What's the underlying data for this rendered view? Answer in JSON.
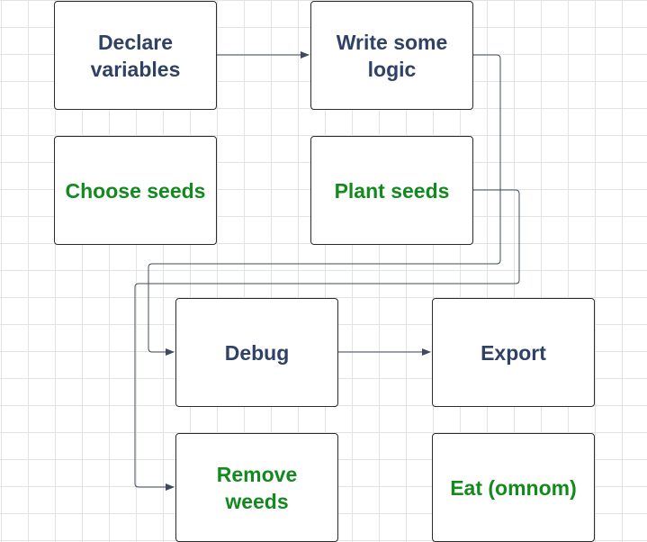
{
  "diagram": {
    "nodes": [
      {
        "id": "declare-variables",
        "label": "Declare variables",
        "kind": "code"
      },
      {
        "id": "write-some-logic",
        "label": "Write some logic",
        "kind": "code"
      },
      {
        "id": "choose-seeds",
        "label": "Choose seeds",
        "kind": "garden"
      },
      {
        "id": "plant-seeds",
        "label": "Plant seeds",
        "kind": "garden"
      },
      {
        "id": "debug",
        "label": "Debug",
        "kind": "code"
      },
      {
        "id": "export",
        "label": "Export",
        "kind": "code"
      },
      {
        "id": "remove-weeds",
        "label": "Remove weeds",
        "kind": "garden"
      },
      {
        "id": "eat-omnom",
        "label": "Eat (omnom)",
        "kind": "garden"
      }
    ],
    "edges": [
      {
        "from": "declare-variables",
        "to": "write-some-logic"
      },
      {
        "from": "write-some-logic",
        "to": "debug"
      },
      {
        "from": "plant-seeds",
        "to": "remove-weeds"
      },
      {
        "from": "debug",
        "to": "export"
      }
    ]
  },
  "colors": {
    "code_text": "#2f4266",
    "garden_text": "#138a1e",
    "node_border": "#2b2b2b",
    "connector": "#3f4a5e",
    "grid": "#e3e3e3"
  }
}
